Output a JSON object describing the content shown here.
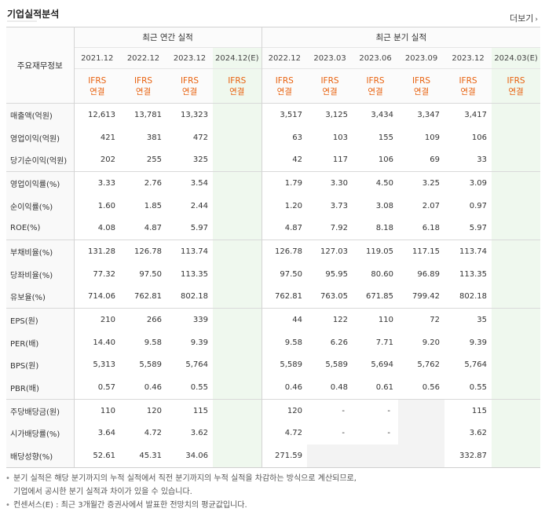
{
  "title": "기업실적분석",
  "more_label": "더보기",
  "more_arrow": "›",
  "label_header": "주요재무정보",
  "annual_header": "최근 연간 실적",
  "quarterly_header": "최근 분기 실적",
  "annual_periods": [
    "2021.12",
    "2022.12",
    "2023.12",
    "2024.12(E)"
  ],
  "quarterly_periods": [
    "2022.12",
    "2023.03",
    "2023.06",
    "2023.09",
    "2023.12",
    "2024.03(E)"
  ],
  "ifrs_line1": "IFRS",
  "ifrs_line2": "연결",
  "rows": [
    {
      "label": "매출액(억원)",
      "annual": [
        "12,613",
        "13,781",
        "13,323",
        ""
      ],
      "quarterly": [
        "3,517",
        "3,125",
        "3,434",
        "3,347",
        "3,417",
        ""
      ]
    },
    {
      "label": "영업이익(억원)",
      "annual": [
        "421",
        "381",
        "472",
        ""
      ],
      "quarterly": [
        "63",
        "103",
        "155",
        "109",
        "106",
        ""
      ]
    },
    {
      "label": "당기순이익(억원)",
      "annual": [
        "202",
        "255",
        "325",
        ""
      ],
      "quarterly": [
        "42",
        "117",
        "106",
        "69",
        "33",
        ""
      ]
    },
    {
      "label": "영업이익률(%)",
      "annual": [
        "3.33",
        "2.76",
        "3.54",
        ""
      ],
      "quarterly": [
        "1.79",
        "3.30",
        "4.50",
        "3.25",
        "3.09",
        ""
      ]
    },
    {
      "label": "순이익률(%)",
      "annual": [
        "1.60",
        "1.85",
        "2.44",
        ""
      ],
      "quarterly": [
        "1.20",
        "3.73",
        "3.08",
        "2.07",
        "0.97",
        ""
      ]
    },
    {
      "label": "ROE(%)",
      "annual": [
        "4.08",
        "4.87",
        "5.97",
        ""
      ],
      "quarterly": [
        "4.87",
        "7.92",
        "8.18",
        "6.18",
        "5.97",
        ""
      ]
    },
    {
      "label": "부채비율(%)",
      "annual": [
        "131.28",
        "126.78",
        "113.74",
        ""
      ],
      "quarterly": [
        "126.78",
        "127.03",
        "119.05",
        "117.15",
        "113.74",
        ""
      ]
    },
    {
      "label": "당좌비율(%)",
      "annual": [
        "77.32",
        "97.50",
        "113.35",
        ""
      ],
      "quarterly": [
        "97.50",
        "95.95",
        "80.60",
        "96.89",
        "113.35",
        ""
      ]
    },
    {
      "label": "유보율(%)",
      "annual": [
        "714.06",
        "762.81",
        "802.18",
        ""
      ],
      "quarterly": [
        "762.81",
        "763.05",
        "671.85",
        "799.42",
        "802.18",
        ""
      ]
    },
    {
      "label": "EPS(원)",
      "annual": [
        "210",
        "266",
        "339",
        ""
      ],
      "quarterly": [
        "44",
        "122",
        "110",
        "72",
        "35",
        ""
      ]
    },
    {
      "label": "PER(배)",
      "annual": [
        "14.40",
        "9.58",
        "9.39",
        ""
      ],
      "quarterly": [
        "9.58",
        "6.26",
        "7.71",
        "9.20",
        "9.39",
        ""
      ]
    },
    {
      "label": "BPS(원)",
      "annual": [
        "5,313",
        "5,589",
        "5,764",
        ""
      ],
      "quarterly": [
        "5,589",
        "5,589",
        "5,694",
        "5,762",
        "5,764",
        ""
      ]
    },
    {
      "label": "PBR(배)",
      "annual": [
        "0.57",
        "0.46",
        "0.55",
        ""
      ],
      "quarterly": [
        "0.46",
        "0.48",
        "0.61",
        "0.56",
        "0.55",
        ""
      ]
    },
    {
      "label": "주당배당금(원)",
      "annual": [
        "110",
        "120",
        "115",
        ""
      ],
      "quarterly": [
        "120",
        "-",
        "-",
        "",
        "115",
        ""
      ]
    },
    {
      "label": "시가배당률(%)",
      "annual": [
        "3.64",
        "4.72",
        "3.62",
        ""
      ],
      "quarterly": [
        "4.72",
        "-",
        "-",
        "",
        "3.62",
        ""
      ]
    },
    {
      "label": "배당성향(%)",
      "annual": [
        "52.61",
        "45.31",
        "34.06",
        ""
      ],
      "quarterly": [
        "271.59",
        "",
        "",
        "",
        "332.87",
        ""
      ]
    }
  ],
  "notes": {
    "n1_line1": "분기 실적은 해당 분기까지의 누적 실적에서 직전 분기까지의 누적 실적을 차감하는 방식으로 계산되므로,",
    "n1_line2": "기업에서 공시한 분기 실적과 차이가 있을 수 있습니다.",
    "n2": "컨센서스(E) : 최근 3개월간 증권사에서 발표한 전망치의 평균값입니다."
  },
  "colors": {
    "accent_orange": "#e8610e",
    "estimate_bg": "#eff8ee"
  }
}
